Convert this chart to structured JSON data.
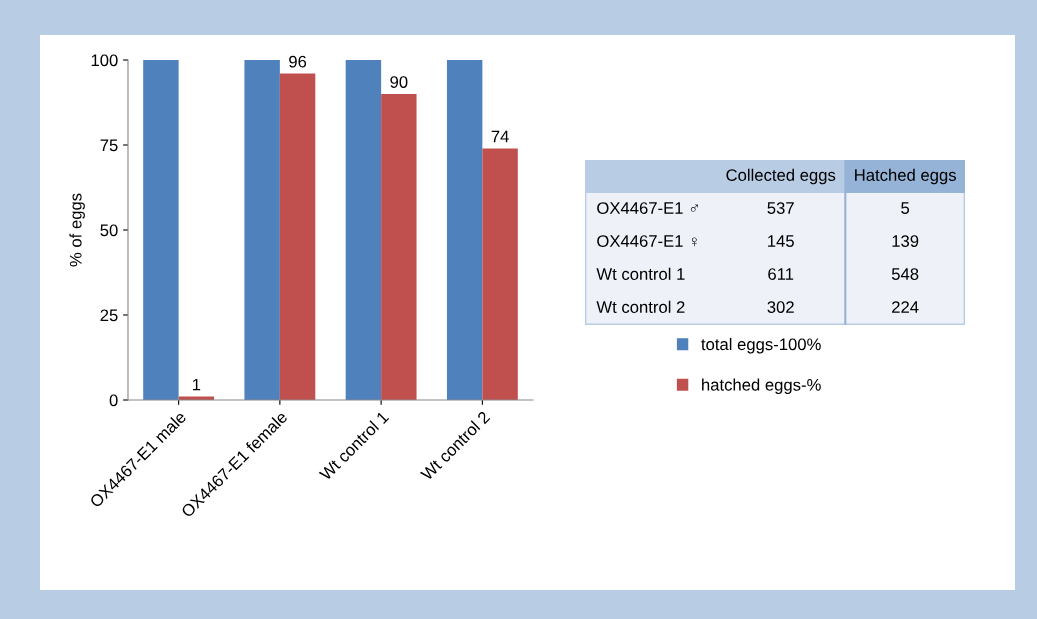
{
  "chart_data": [
    {
      "type": "bar",
      "ylabel": "% of eggs",
      "categories": [
        "OX4467-E1 male",
        "OX4467-E1 female",
        "Wt control 1",
        "Wt control 2"
      ],
      "series": [
        {
          "name": "total eggs-100%",
          "color": "#4f81bd",
          "values": [
            100,
            100,
            100,
            100
          ]
        },
        {
          "name": "hatched eggs-%",
          "color": "#c0504d",
          "values": [
            1,
            96,
            90,
            74
          ],
          "value_labels": [
            "1",
            "96",
            "90",
            "74"
          ]
        }
      ],
      "ylim": [
        0,
        100
      ],
      "yticks": [
        0,
        25,
        50,
        75,
        100
      ],
      "grid": false,
      "legend": "right"
    },
    {
      "type": "other",
      "annotations": [
        "Collected eggs",
        "Hatched eggs",
        "OX4467-E1 ♂",
        "537",
        "5",
        "OX4467-E1 ♀",
        "145",
        "139",
        "Wt control 1",
        "611",
        "548",
        "Wt control 2",
        "302",
        "224"
      ]
    }
  ]
}
